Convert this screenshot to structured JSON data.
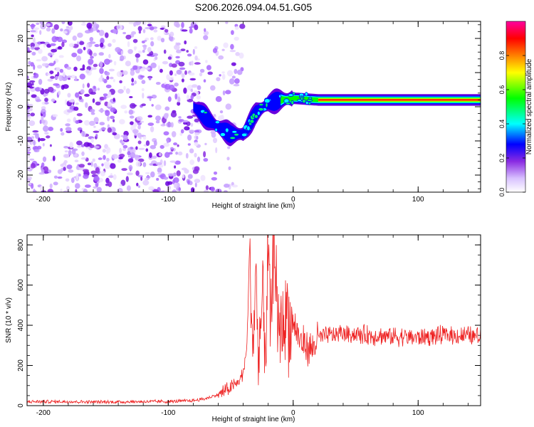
{
  "title": "S206.2026.094.04.51.G05",
  "chart_data": [
    {
      "type": "heatmap",
      "name": "spectrogram",
      "xlabel": "Height of straight line (km)",
      "ylabel": "Frequency (Hz)",
      "xlim": [
        -213,
        150
      ],
      "ylim": [
        -25,
        25
      ],
      "xticks": [
        -200,
        -100,
        0,
        100
      ],
      "xtick_labels": [
        "-200",
        "-100",
        "0",
        "100"
      ],
      "yticks": [
        -20,
        -10,
        0,
        10,
        20
      ],
      "ytick_labels": [
        "-20",
        "-10",
        "0",
        "10",
        "20"
      ],
      "noise_region_x": [
        -213,
        -60
      ],
      "ridge": {
        "x": [
          -80,
          -70,
          -60,
          -50,
          -40,
          -30,
          -20,
          -10,
          0,
          20,
          50,
          100,
          150
        ],
        "frequency": [
          0,
          -3,
          -6,
          -8,
          -8,
          -2,
          1,
          2,
          2.5,
          2,
          2,
          2,
          2
        ]
      },
      "colorbar": {
        "label": "Normalized spectral amplitude",
        "range": [
          0,
          1
        ],
        "ticks": [
          0.0,
          0.2,
          0.4,
          0.6,
          0.8
        ],
        "tick_labels": [
          "0.0",
          "0.2",
          "0.4",
          "0.6",
          "0.8"
        ],
        "colors": [
          "#ffffff",
          "#d9c2ff",
          "#8a2be2",
          "#0000ff",
          "#00ffff",
          "#00ff00",
          "#ffff00",
          "#ff8000",
          "#ff0000",
          "#ff00a0"
        ]
      }
    },
    {
      "type": "line",
      "name": "snr",
      "xlabel": "Height of straight line (km)",
      "ylabel": "SNR (10 * v/v)",
      "xlim": [
        -213,
        150
      ],
      "ylim": [
        0,
        850
      ],
      "xticks": [
        -200,
        -100,
        0,
        100
      ],
      "xtick_labels": [
        "-200",
        "-100",
        "0",
        "100"
      ],
      "yticks": [
        0,
        200,
        400,
        600,
        800
      ],
      "ytick_labels": [
        "0",
        "200",
        "400",
        "600",
        "800"
      ],
      "series": [
        {
          "name": "SNR",
          "color": "#ee2222",
          "x": [
            -213,
            -180,
            -150,
            -120,
            -100,
            -80,
            -70,
            -60,
            -50,
            -45,
            -40,
            -37,
            -35,
            -32,
            -30,
            -28,
            -25,
            -22,
            -20,
            -18,
            -15,
            -12,
            -10,
            -8,
            -5,
            -2,
            0,
            5,
            10,
            15,
            20,
            30,
            40,
            60,
            80,
            100,
            120,
            150
          ],
          "y": [
            20,
            20,
            18,
            20,
            20,
            25,
            35,
            55,
            90,
            110,
            160,
            300,
            760,
            250,
            700,
            200,
            500,
            300,
            760,
            350,
            850,
            300,
            450,
            400,
            500,
            350,
            420,
            330,
            300,
            280,
            340,
            350,
            360,
            350,
            345,
            340,
            350,
            345
          ]
        }
      ]
    }
  ]
}
